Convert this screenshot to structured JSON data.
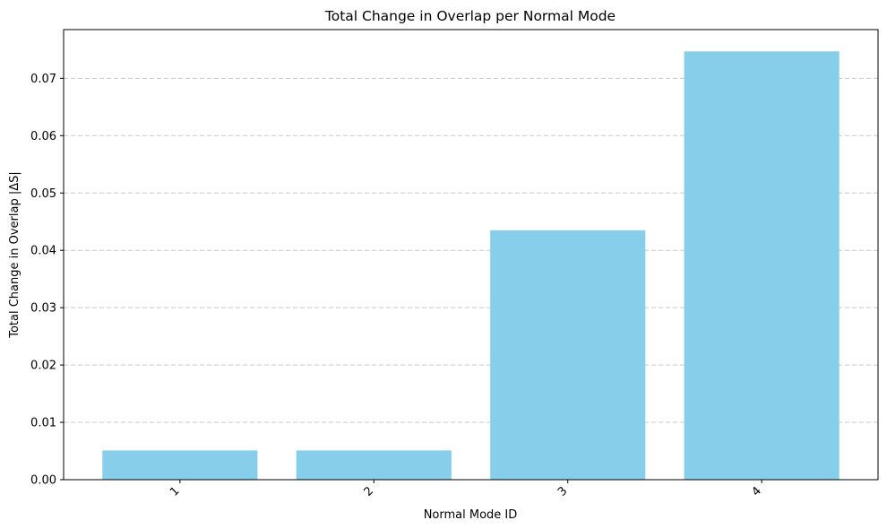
{
  "chart_data": {
    "type": "bar",
    "title": "Total Change in Overlap per Normal Mode",
    "xlabel": "Normal Mode ID",
    "ylabel": "Total Change in Overlap |ΔS|",
    "categories": [
      "1",
      "2",
      "3",
      "4"
    ],
    "values": [
      0.0051,
      0.0051,
      0.0435,
      0.0747
    ],
    "ylim": [
      0,
      0.0785
    ],
    "yticks": [
      0.0,
      0.01,
      0.02,
      0.03,
      0.04,
      0.05,
      0.06,
      0.07
    ],
    "ytick_labels": [
      "0.00",
      "0.01",
      "0.02",
      "0.03",
      "0.04",
      "0.05",
      "0.06",
      "0.07"
    ],
    "x_tick_rotation_deg": 45,
    "grid": "y-dashed",
    "bar_color": "#87ceeb",
    "grid_color": "#c8c8c8",
    "legend": "none"
  }
}
